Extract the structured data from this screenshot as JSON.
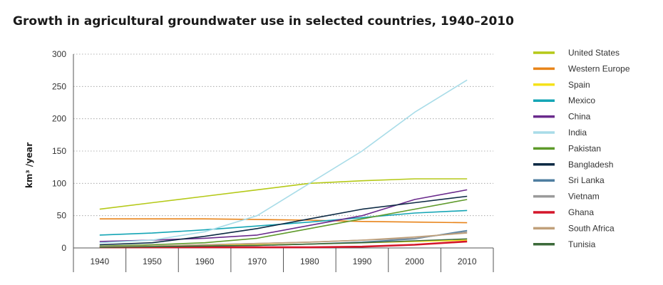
{
  "chart_data": {
    "type": "line",
    "title": "Growth in agricultural groundwater use in selected countries, 1940–2010",
    "xlabel": "",
    "ylabel": "km³ /year",
    "categories": [
      "1940",
      "1950",
      "1960",
      "1970",
      "1980",
      "1990",
      "2000",
      "2010"
    ],
    "x": [
      1940,
      1950,
      1960,
      1970,
      1980,
      1990,
      2000,
      2010
    ],
    "ylim": [
      0,
      300
    ],
    "yticks": [
      0,
      50,
      100,
      150,
      200,
      250,
      300
    ],
    "grid": "horizontal dotted",
    "legend_position": "right",
    "series": [
      {
        "name": "United States",
        "color": "#b5c918",
        "values": [
          60,
          70,
          80,
          90,
          100,
          104,
          107,
          107
        ]
      },
      {
        "name": "Western Europe",
        "color": "#e8841a",
        "values": [
          45,
          45,
          45,
          44,
          43,
          41,
          40,
          39
        ]
      },
      {
        "name": "Spain",
        "color": "#f5e21a",
        "values": [
          2,
          3,
          4,
          5,
          6,
          8,
          10,
          12
        ]
      },
      {
        "name": "Mexico",
        "color": "#14a5b5",
        "values": [
          20,
          23,
          28,
          34,
          40,
          47,
          54,
          58
        ]
      },
      {
        "name": "China",
        "color": "#6a2a8c",
        "values": [
          10,
          12,
          15,
          20,
          35,
          50,
          75,
          90
        ]
      },
      {
        "name": "India",
        "color": "#a8dce8",
        "values": [
          8,
          12,
          25,
          50,
          100,
          150,
          210,
          260
        ]
      },
      {
        "name": "Pakistan",
        "color": "#5e9a2a",
        "values": [
          3,
          5,
          8,
          15,
          30,
          45,
          60,
          75
        ]
      },
      {
        "name": "Bangladesh",
        "color": "#0d2a44",
        "values": [
          5,
          8,
          18,
          30,
          45,
          60,
          70,
          80
        ]
      },
      {
        "name": "Sri Lanka",
        "color": "#4f7ea0",
        "values": [
          1,
          2,
          3,
          4,
          6,
          9,
          14,
          27
        ]
      },
      {
        "name": "Vietnam",
        "color": "#9a9a9a",
        "values": [
          2,
          3,
          5,
          7,
          9,
          12,
          15,
          25
        ]
      },
      {
        "name": "Ghana",
        "color": "#d4162a",
        "values": [
          1,
          1,
          1,
          1,
          1,
          2,
          5,
          10
        ]
      },
      {
        "name": "South Africa",
        "color": "#c0a07a",
        "values": [
          2,
          3,
          5,
          7,
          9,
          12,
          17,
          23
        ]
      },
      {
        "name": "Tunisia",
        "color": "#3c6a3a",
        "values": [
          1,
          2,
          3,
          4,
          6,
          8,
          11,
          14
        ]
      }
    ]
  }
}
